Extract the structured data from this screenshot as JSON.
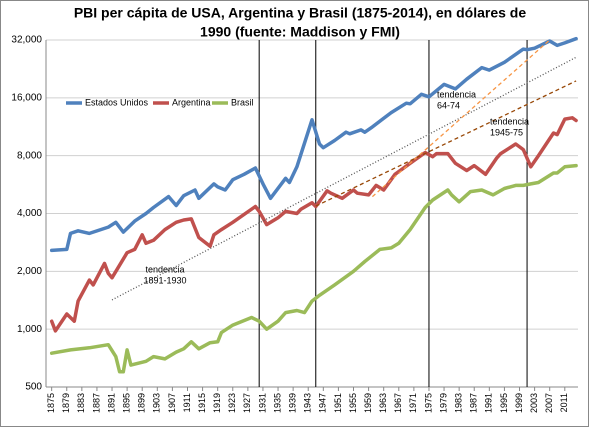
{
  "chart_data": {
    "type": "line",
    "log_y": true,
    "grid": true,
    "title": [
      "PBI per cápita de USA, Argentina y Brasil (1875-2014), en dólares de",
      "1990 (fuente: Maddison y FMI)"
    ],
    "xlim": [
      1873.5,
      2014.5
    ],
    "ylim": [
      500,
      32000
    ],
    "xticks": [
      1875,
      1879,
      1883,
      1887,
      1891,
      1895,
      1899,
      1903,
      1907,
      1911,
      1915,
      1919,
      1923,
      1927,
      1931,
      1935,
      1939,
      1943,
      1947,
      1951,
      1955,
      1959,
      1963,
      1967,
      1971,
      1975,
      1979,
      1983,
      1987,
      1991,
      1995,
      1999,
      2003,
      2007,
      2011
    ],
    "yticks": [
      {
        "value": 500,
        "label": "500"
      },
      {
        "value": 1000,
        "label": "1,000"
      },
      {
        "value": 2000,
        "label": "2,000"
      },
      {
        "value": 4000,
        "label": "4,000"
      },
      {
        "value": 8000,
        "label": "8,000"
      },
      {
        "value": 16000,
        "label": "16,000"
      },
      {
        "value": 32000,
        "label": "32,000"
      }
    ],
    "vlines": [
      1930,
      1945,
      1975,
      2001
    ],
    "series": [
      {
        "name": "Estados Unidos",
        "color": "#4f81bd",
        "x": [
          1875,
          1879,
          1880,
          1882,
          1885,
          1890,
          1892,
          1894,
          1897,
          1900,
          1902,
          1906,
          1908,
          1910,
          1913,
          1914,
          1918,
          1919,
          1921,
          1923,
          1926,
          1929,
          1931,
          1933,
          1937,
          1938,
          1940,
          1944,
          1946,
          1947,
          1950,
          1953,
          1954,
          1957,
          1958,
          1960,
          1965,
          1969,
          1970,
          1973,
          1975,
          1979,
          1982,
          1985,
          1989,
          1991,
          1995,
          2000,
          2001,
          2003,
          2007,
          2009,
          2011,
          2014
        ],
        "values": [
          2570,
          2600,
          3150,
          3250,
          3150,
          3400,
          3600,
          3200,
          3650,
          4000,
          4300,
          4900,
          4400,
          4950,
          5300,
          4800,
          5700,
          5500,
          5300,
          6000,
          6400,
          6900,
          5700,
          4800,
          6100,
          5800,
          7000,
          12300,
          9200,
          8800,
          9600,
          10600,
          10400,
          10900,
          10600,
          11300,
          13400,
          15000,
          14900,
          16700,
          16200,
          18800,
          17800,
          20000,
          23000,
          22300,
          24500,
          28700,
          28500,
          29000,
          31600,
          30000,
          30900,
          32500
        ]
      },
      {
        "name": "Argentina",
        "color": "#c0504d",
        "x": [
          1875,
          1876,
          1879,
          1881,
          1882,
          1885,
          1886,
          1889,
          1890,
          1891,
          1895,
          1897,
          1899,
          1900,
          1902,
          1905,
          1908,
          1910,
          1912,
          1914,
          1917,
          1918,
          1920,
          1923,
          1929,
          1930,
          1932,
          1935,
          1937,
          1940,
          1941,
          1944,
          1945,
          1948,
          1949,
          1952,
          1955,
          1956,
          1959,
          1961,
          1963,
          1966,
          1970,
          1974,
          1975,
          1976,
          1977,
          1980,
          1982,
          1985,
          1987,
          1990,
          1993,
          1994,
          1998,
          2000,
          2002,
          2004,
          2008,
          2009,
          2011,
          2013,
          2014
        ],
        "values": [
          1100,
          980,
          1200,
          1100,
          1400,
          1800,
          1700,
          2200,
          1950,
          1850,
          2500,
          2600,
          3100,
          2800,
          2900,
          3300,
          3600,
          3700,
          3750,
          3000,
          2700,
          3100,
          3300,
          3600,
          4350,
          4100,
          3500,
          3800,
          4100,
          4000,
          4200,
          4550,
          4350,
          5250,
          5100,
          4800,
          5300,
          5100,
          5000,
          5600,
          5300,
          6400,
          7300,
          8300,
          8100,
          7900,
          8200,
          8200,
          7300,
          6700,
          7100,
          6400,
          7800,
          8200,
          9200,
          8600,
          7000,
          8000,
          10500,
          10300,
          12400,
          12600,
          12200
        ]
      },
      {
        "name": "Brasil",
        "color": "#9bbb59",
        "x": [
          1875,
          1880,
          1885,
          1890,
          1892,
          1893,
          1894,
          1895,
          1896,
          1900,
          1902,
          1905,
          1908,
          1910,
          1912,
          1914,
          1917,
          1919,
          1920,
          1923,
          1928,
          1930,
          1932,
          1935,
          1937,
          1940,
          1942,
          1944,
          1946,
          1950,
          1955,
          1958,
          1962,
          1965,
          1967,
          1970,
          1974,
          1976,
          1980,
          1981,
          1983,
          1986,
          1989,
          1992,
          1995,
          1998,
          2000,
          2002,
          2004,
          2008,
          2009,
          2011,
          2014
        ],
        "values": [
          750,
          780,
          800,
          830,
          720,
          600,
          600,
          780,
          650,
          680,
          720,
          700,
          760,
          790,
          860,
          790,
          850,
          860,
          960,
          1050,
          1150,
          1100,
          1000,
          1100,
          1220,
          1250,
          1220,
          1400,
          1500,
          1700,
          2000,
          2250,
          2600,
          2650,
          2800,
          3300,
          4300,
          4700,
          5300,
          5000,
          4600,
          5200,
          5300,
          5000,
          5400,
          5600,
          5600,
          5700,
          5800,
          6500,
          6500,
          7000,
          7100
        ]
      }
    ],
    "trends": [
      {
        "label": [
          "tendencia",
          "1891-1930"
        ],
        "x": [
          1891,
          2014
        ],
        "values": [
          1420,
          26000
        ],
        "color": "#555555",
        "dash": "1,2"
      },
      {
        "label": [
          "tendencia",
          "64-74"
        ],
        "x": [
          1960,
          2007
        ],
        "values": [
          4900,
          32000
        ],
        "color": "#f79646",
        "dash": "4,3"
      },
      {
        "label": [
          "tendencia",
          "1945-75"
        ],
        "x": [
          1945,
          2014
        ],
        "values": [
          4370,
          19600
        ],
        "color": "#984807",
        "dash": "4,3"
      }
    ]
  }
}
